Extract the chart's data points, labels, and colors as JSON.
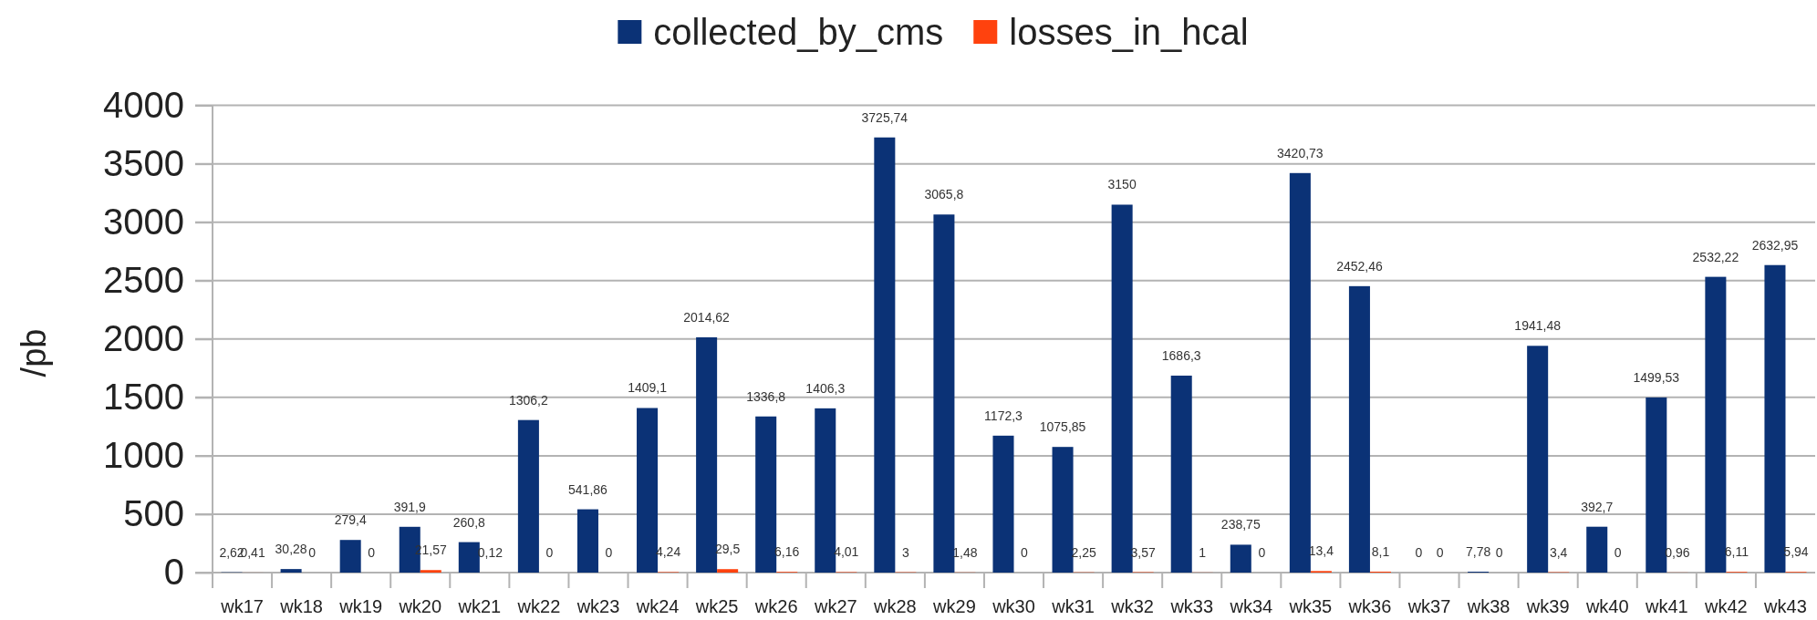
{
  "chart_data": {
    "type": "bar",
    "ylabel": "/pb",
    "categories": [
      "wk17",
      "wk18",
      "wk19",
      "wk20",
      "wk21",
      "wk22",
      "wk23",
      "wk24",
      "wk25",
      "wk26",
      "wk27",
      "wk28",
      "wk29",
      "wk30",
      "wk31",
      "wk32",
      "wk33",
      "wk34",
      "wk35",
      "wk36",
      "wk37",
      "wk38",
      "wk39",
      "wk40",
      "wk41",
      "wk42",
      "wk43"
    ],
    "series": [
      {
        "name": "collected_by_cms",
        "color": "#0b3276",
        "values": [
          2.62,
          30.28,
          279.4,
          391.9,
          260.8,
          1306.2,
          541.86,
          1409.1,
          2014.62,
          1336.8,
          1406.3,
          3725.74,
          3065.8,
          1172.3,
          1075.85,
          3150,
          1686.3,
          238.75,
          3420.73,
          2452.46,
          0,
          7.78,
          1941.48,
          392.7,
          1499.53,
          2532.22,
          2632.95
        ],
        "value_labels": [
          "2,62",
          "30,28",
          "279,4",
          "391,9",
          "260,8",
          "1306,2",
          "541,86",
          "1409,1",
          "2014,62",
          "1336,8",
          "1406,3",
          "3725,74",
          "3065,8",
          "1172,3",
          "1075,85",
          "3150",
          "1686,3",
          "238,75",
          "3420,73",
          "2452,46",
          "0",
          "7,78",
          "1941,48",
          "392,7",
          "1499,53",
          "2532,22",
          "2632,95"
        ]
      },
      {
        "name": "losses_in_hcal",
        "color": "#ff420e",
        "values": [
          0.41,
          0,
          0,
          21.57,
          0.12,
          0,
          0,
          4.24,
          29.5,
          6.16,
          4.01,
          3,
          1.48,
          0,
          2.25,
          3.57,
          1,
          0,
          13.4,
          8.1,
          0,
          0,
          3.4,
          0,
          0.96,
          6.11,
          5.94
        ],
        "value_labels": [
          "0,41",
          "0",
          "0",
          "21,57",
          "0,12",
          "0",
          "0",
          "4,24",
          "29,5",
          "6,16",
          "4,01",
          "3",
          "1,48",
          "0",
          "2,25",
          "3,57",
          "1",
          "0",
          "13,4",
          "8,1",
          "0",
          "0",
          "3,4",
          "0",
          "0,96",
          "6,11",
          "5,94"
        ]
      }
    ],
    "ylim": [
      0,
      4000
    ],
    "yticks": [
      0,
      500,
      1000,
      1500,
      2000,
      2500,
      3000,
      3500,
      4000
    ],
    "grid": "y",
    "legend": "top"
  }
}
